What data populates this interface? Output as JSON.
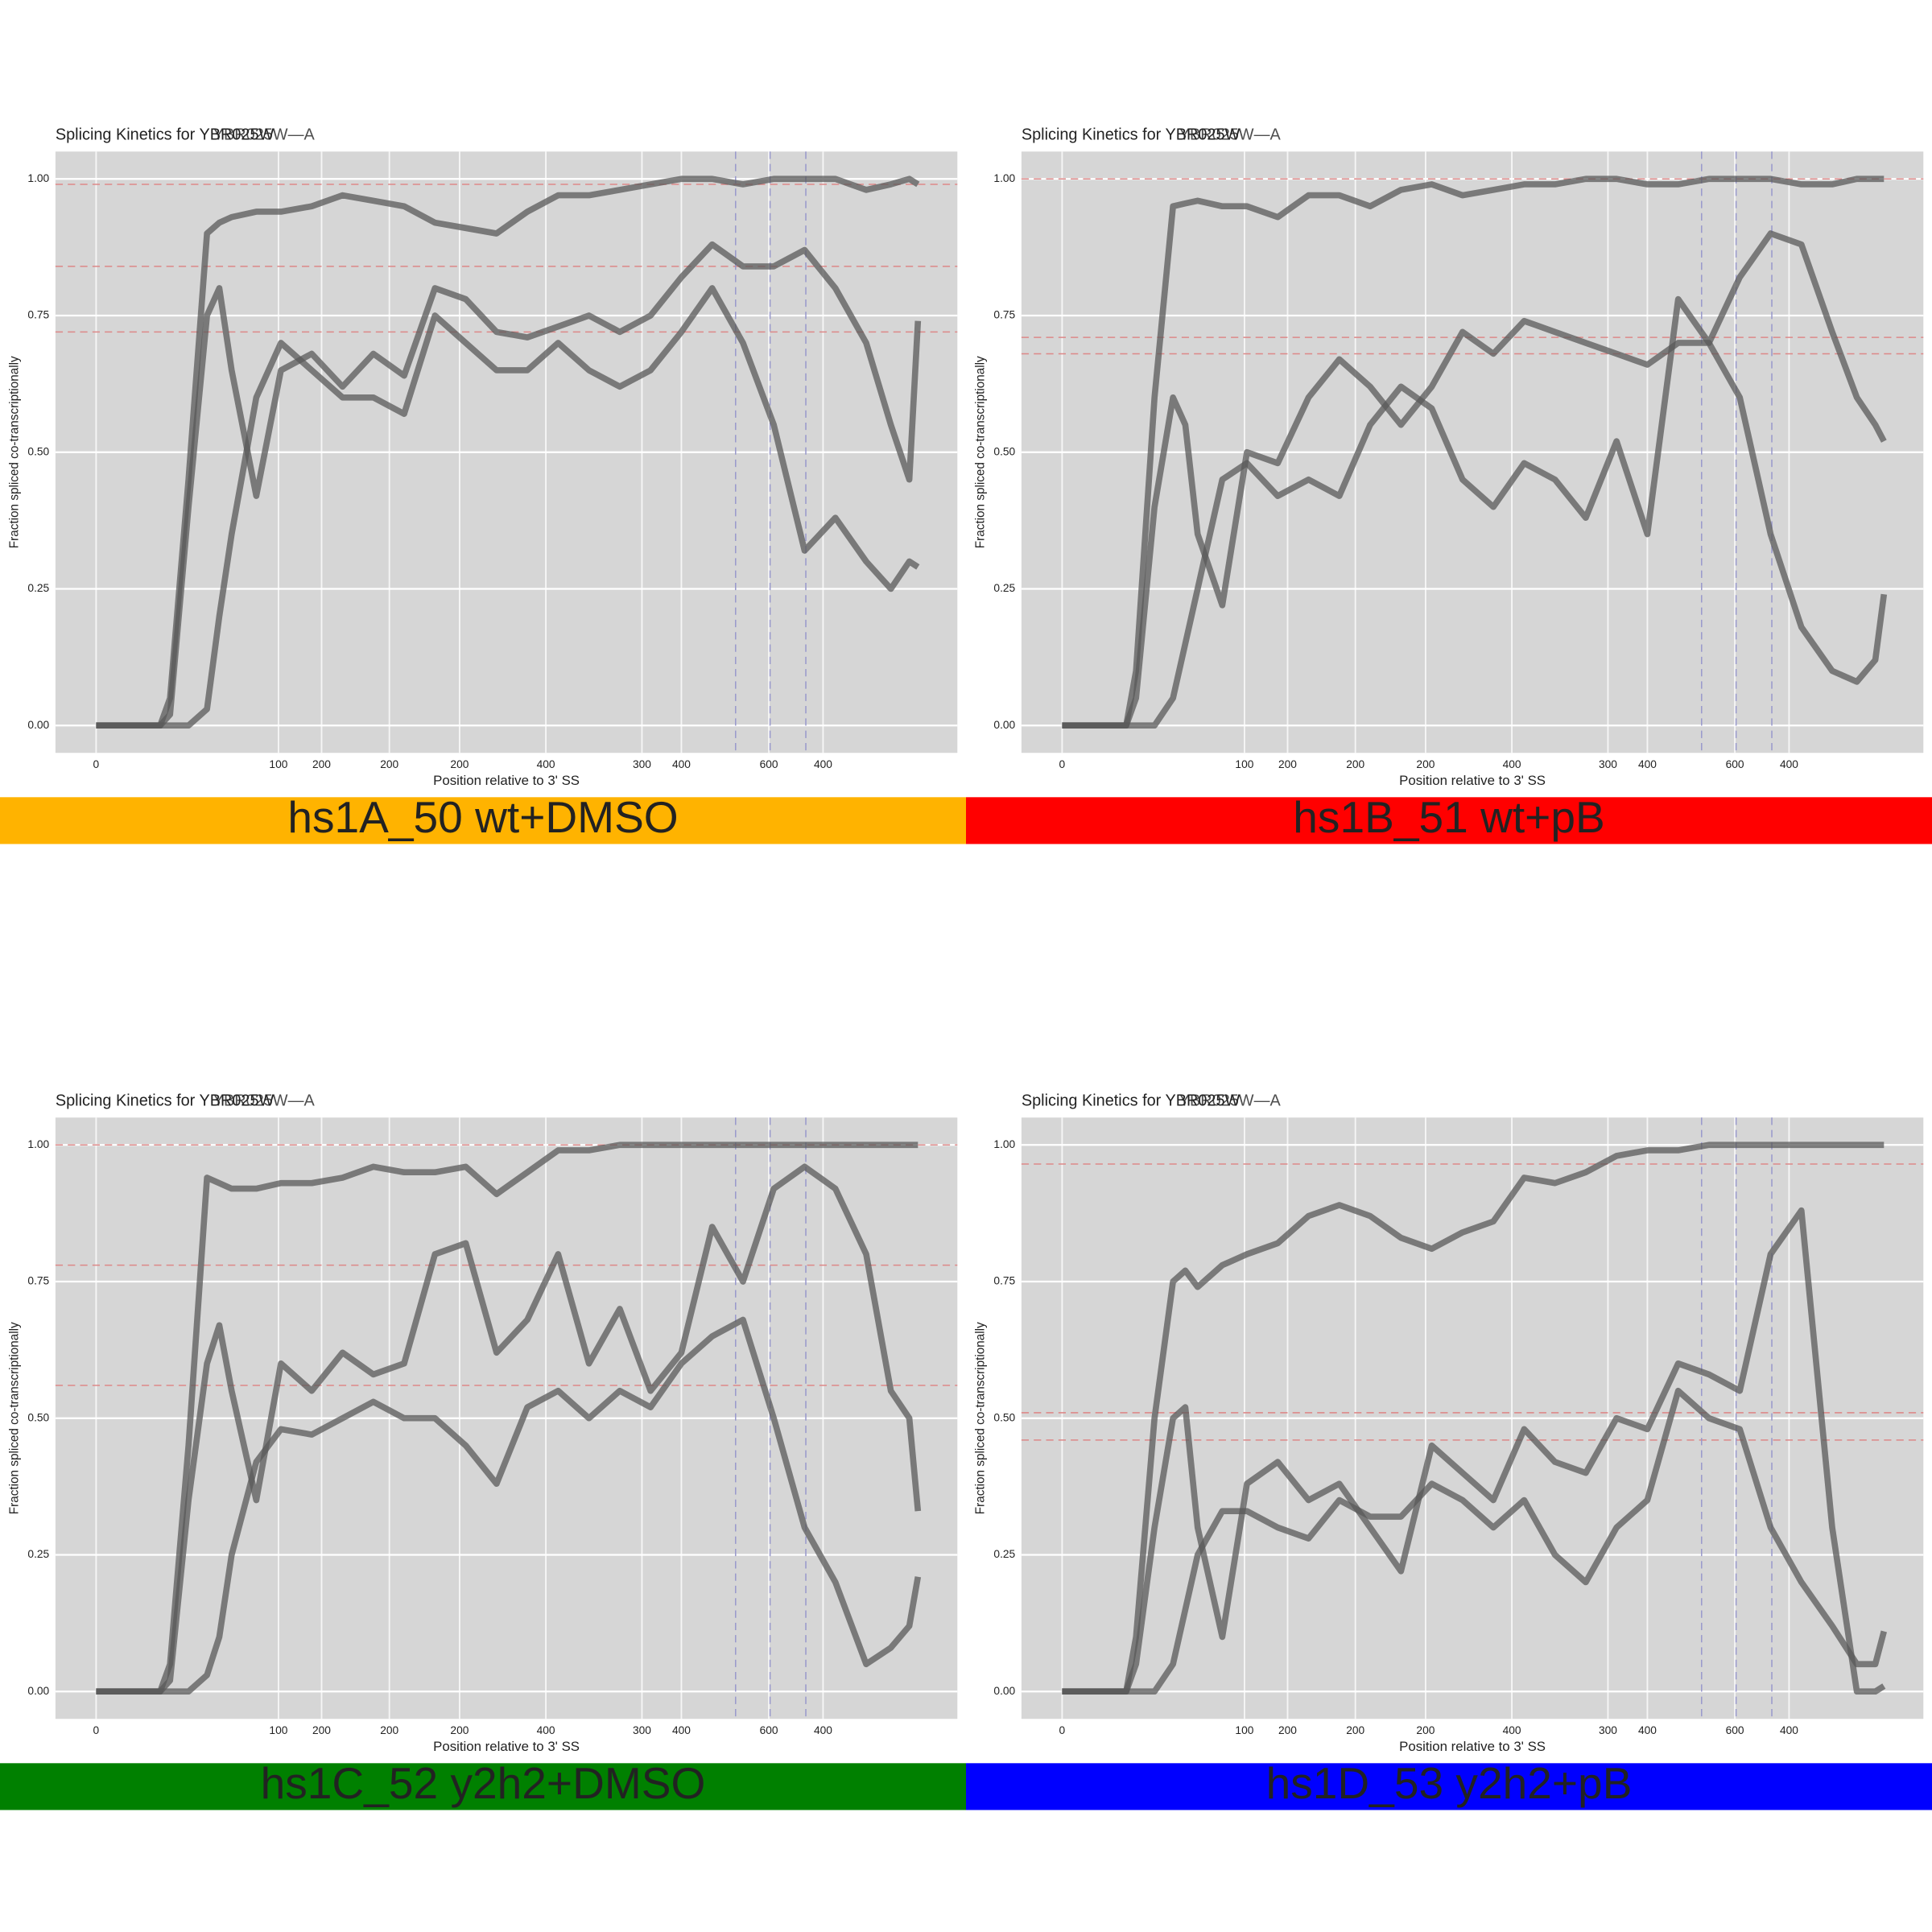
{
  "chart_data": [
    {
      "type": "line",
      "title": "Splicing Kinetics for YBR025W",
      "overlay_label": "YBR025W—A",
      "xlabel": "Position relative to 3' SS",
      "ylabel": "Fraction spliced co-transcriptionally",
      "banner": {
        "text": "hs1A_50 wt+DMSO",
        "color": "#ffb300"
      },
      "xlim": [
        -33,
        699
      ],
      "ylim": [
        -0.05,
        1.05
      ],
      "xticks": [
        0,
        {
          "value": 148,
          "label": "100"
        },
        {
          "value": 183,
          "label": "200"
        },
        {
          "value": 238,
          "label": "200"
        },
        {
          "value": 295,
          "label": "200"
        },
        {
          "value": 365,
          "label": "400"
        },
        {
          "value": 443,
          "label": "300"
        },
        {
          "value": 475,
          "label": "400"
        },
        {
          "value": 546,
          "label": "600"
        },
        {
          "value": 590,
          "label": "400"
        }
      ],
      "yticks": [
        {
          "value": 0,
          "label": "0.00"
        },
        {
          "value": 0.25,
          "label": "0.25"
        },
        {
          "value": 0.5,
          "label": "0.50"
        },
        {
          "value": 0.75,
          "label": "0.75"
        },
        {
          "value": 1,
          "label": "1.00"
        }
      ],
      "hlines": [
        0.99,
        0.84,
        0.72
      ],
      "vlines": [
        519,
        547,
        576
      ],
      "x": [
        0,
        52,
        60,
        75,
        90,
        100,
        110,
        130,
        150,
        175,
        200,
        225,
        250,
        275,
        300,
        325,
        350,
        375,
        400,
        425,
        450,
        475,
        500,
        525,
        550,
        575,
        600,
        625,
        645,
        660,
        667
      ],
      "series": [
        {
          "color": "#5a5a5a",
          "values": [
            0,
            0,
            0.05,
            0.45,
            0.9,
            0.92,
            0.93,
            0.94,
            0.94,
            0.95,
            0.97,
            0.96,
            0.95,
            0.92,
            0.91,
            0.9,
            0.94,
            0.97,
            0.97,
            0.98,
            0.99,
            1.0,
            1.0,
            0.99,
            1.0,
            1.0,
            1.0,
            0.98,
            0.99,
            1.0,
            0.99
          ]
        },
        {
          "color": "#5a5a5a",
          "values": [
            0,
            0,
            0.02,
            0.4,
            0.75,
            0.8,
            0.65,
            0.42,
            0.65,
            0.68,
            0.62,
            0.68,
            0.64,
            0.8,
            0.78,
            0.72,
            0.71,
            0.73,
            0.75,
            0.72,
            0.75,
            0.82,
            0.88,
            0.84,
            0.84,
            0.87,
            0.8,
            0.7,
            0.55,
            0.45,
            0.74
          ]
        },
        {
          "color": "#5a5a5a",
          "values": [
            0,
            0,
            0,
            0,
            0.03,
            0.2,
            0.35,
            0.6,
            0.7,
            0.65,
            0.6,
            0.6,
            0.57,
            0.75,
            0.7,
            0.65,
            0.65,
            0.7,
            0.65,
            0.62,
            0.65,
            0.72,
            0.8,
            0.7,
            0.55,
            0.32,
            0.38,
            0.3,
            0.25,
            0.3,
            0.29
          ]
        }
      ]
    },
    {
      "type": "line",
      "title": "Splicing Kinetics for YBR025W",
      "overlay_label": "YBR025W—A",
      "xlabel": "Position relative to 3' SS",
      "ylabel": "Fraction spliced co-transcriptionally",
      "banner": {
        "text": "hs1B_51 wt+pB",
        "color": "#ff0000"
      },
      "xlim": [
        -33,
        699
      ],
      "ylim": [
        -0.05,
        1.05
      ],
      "xticks": [
        0,
        {
          "value": 148,
          "label": "100"
        },
        {
          "value": 183,
          "label": "200"
        },
        {
          "value": 238,
          "label": "200"
        },
        {
          "value": 295,
          "label": "200"
        },
        {
          "value": 365,
          "label": "400"
        },
        {
          "value": 443,
          "label": "300"
        },
        {
          "value": 475,
          "label": "400"
        },
        {
          "value": 546,
          "label": "600"
        },
        {
          "value": 590,
          "label": "400"
        }
      ],
      "yticks": [
        {
          "value": 0,
          "label": "0.00"
        },
        {
          "value": 0.25,
          "label": "0.25"
        },
        {
          "value": 0.5,
          "label": "0.50"
        },
        {
          "value": 0.75,
          "label": "0.75"
        },
        {
          "value": 1,
          "label": "1.00"
        }
      ],
      "hlines": [
        1.0,
        0.71,
        0.68
      ],
      "vlines": [
        519,
        547,
        576
      ],
      "x": [
        0,
        52,
        60,
        75,
        90,
        100,
        110,
        130,
        150,
        175,
        200,
        225,
        250,
        275,
        300,
        325,
        350,
        375,
        400,
        425,
        450,
        475,
        500,
        525,
        550,
        575,
        600,
        625,
        645,
        660,
        667
      ],
      "series": [
        {
          "color": "#5a5a5a",
          "values": [
            0,
            0,
            0.1,
            0.6,
            0.95,
            0.955,
            0.96,
            0.95,
            0.95,
            0.93,
            0.97,
            0.97,
            0.95,
            0.98,
            0.99,
            0.97,
            0.98,
            0.99,
            0.99,
            1.0,
            1.0,
            0.99,
            0.99,
            1.0,
            1.0,
            1.0,
            0.99,
            0.99,
            1.0,
            1.0,
            1.0
          ]
        },
        {
          "color": "#5a5a5a",
          "values": [
            0,
            0,
            0.05,
            0.4,
            0.6,
            0.55,
            0.35,
            0.22,
            0.5,
            0.48,
            0.6,
            0.67,
            0.62,
            0.55,
            0.62,
            0.72,
            0.68,
            0.74,
            0.72,
            0.7,
            0.68,
            0.66,
            0.7,
            0.7,
            0.6,
            0.35,
            0.18,
            0.1,
            0.08,
            0.12,
            0.24
          ]
        },
        {
          "color": "#5a5a5a",
          "values": [
            0,
            0,
            0,
            0,
            0.05,
            0.15,
            0.25,
            0.45,
            0.48,
            0.42,
            0.45,
            0.42,
            0.55,
            0.62,
            0.58,
            0.45,
            0.4,
            0.48,
            0.45,
            0.38,
            0.52,
            0.35,
            0.78,
            0.7,
            0.82,
            0.9,
            0.88,
            0.72,
            0.6,
            0.55,
            0.52
          ]
        }
      ]
    },
    {
      "type": "line",
      "title": "Splicing Kinetics for YBR025W",
      "overlay_label": "YBR025W—A",
      "xlabel": "Position relative to 3' SS",
      "ylabel": "Fraction spliced co-transcriptionally",
      "banner": {
        "text": "hs1C_52 y2h2+DMSO",
        "color": "#008000"
      },
      "xlim": [
        -33,
        699
      ],
      "ylim": [
        -0.05,
        1.05
      ],
      "xticks": [
        0,
        {
          "value": 148,
          "label": "100"
        },
        {
          "value": 183,
          "label": "200"
        },
        {
          "value": 238,
          "label": "200"
        },
        {
          "value": 295,
          "label": "200"
        },
        {
          "value": 365,
          "label": "400"
        },
        {
          "value": 443,
          "label": "300"
        },
        {
          "value": 475,
          "label": "400"
        },
        {
          "value": 546,
          "label": "600"
        },
        {
          "value": 590,
          "label": "400"
        }
      ],
      "yticks": [
        {
          "value": 0,
          "label": "0.00"
        },
        {
          "value": 0.25,
          "label": "0.25"
        },
        {
          "value": 0.5,
          "label": "0.50"
        },
        {
          "value": 0.75,
          "label": "0.75"
        },
        {
          "value": 1,
          "label": "1.00"
        }
      ],
      "hlines": [
        1.0,
        0.78,
        0.56
      ],
      "vlines": [
        519,
        547,
        576
      ],
      "x": [
        0,
        52,
        60,
        75,
        90,
        100,
        110,
        130,
        150,
        175,
        200,
        225,
        250,
        275,
        300,
        325,
        350,
        375,
        400,
        425,
        450,
        475,
        500,
        525,
        550,
        575,
        600,
        625,
        645,
        660,
        667
      ],
      "series": [
        {
          "color": "#5a5a5a",
          "values": [
            0,
            0,
            0.05,
            0.45,
            0.94,
            0.93,
            0.92,
            0.92,
            0.93,
            0.93,
            0.94,
            0.96,
            0.95,
            0.95,
            0.96,
            0.91,
            0.95,
            0.99,
            0.99,
            1.0,
            1.0,
            1.0,
            1.0,
            1.0,
            1.0,
            1.0,
            1.0,
            1.0,
            1.0,
            1.0,
            1.0
          ]
        },
        {
          "color": "#5a5a5a",
          "values": [
            0,
            0,
            0.02,
            0.35,
            0.6,
            0.67,
            0.55,
            0.35,
            0.6,
            0.55,
            0.62,
            0.58,
            0.6,
            0.8,
            0.82,
            0.62,
            0.68,
            0.8,
            0.6,
            0.7,
            0.55,
            0.62,
            0.85,
            0.75,
            0.92,
            0.96,
            0.92,
            0.8,
            0.55,
            0.5,
            0.33
          ]
        },
        {
          "color": "#5a5a5a",
          "values": [
            0,
            0,
            0,
            0,
            0.03,
            0.1,
            0.25,
            0.42,
            0.48,
            0.47,
            0.5,
            0.53,
            0.5,
            0.5,
            0.45,
            0.38,
            0.52,
            0.55,
            0.5,
            0.55,
            0.52,
            0.6,
            0.65,
            0.68,
            0.5,
            0.3,
            0.2,
            0.05,
            0.08,
            0.12,
            0.21
          ]
        }
      ]
    },
    {
      "type": "line",
      "title": "Splicing Kinetics for YBR025W",
      "overlay_label": "YBR025W—A",
      "xlabel": "Position relative to 3' SS",
      "ylabel": "Fraction spliced co-transcriptionally",
      "banner": {
        "text": "hs1D_53 y2h2+pB",
        "color": "#0000ff"
      },
      "xlim": [
        -33,
        699
      ],
      "ylim": [
        -0.05,
        1.05
      ],
      "xticks": [
        0,
        {
          "value": 148,
          "label": "100"
        },
        {
          "value": 183,
          "label": "200"
        },
        {
          "value": 238,
          "label": "200"
        },
        {
          "value": 295,
          "label": "200"
        },
        {
          "value": 365,
          "label": "400"
        },
        {
          "value": 443,
          "label": "300"
        },
        {
          "value": 475,
          "label": "400"
        },
        {
          "value": 546,
          "label": "600"
        },
        {
          "value": 590,
          "label": "400"
        }
      ],
      "yticks": [
        {
          "value": 0,
          "label": "0.00"
        },
        {
          "value": 0.25,
          "label": "0.25"
        },
        {
          "value": 0.5,
          "label": "0.50"
        },
        {
          "value": 0.75,
          "label": "0.75"
        },
        {
          "value": 1,
          "label": "1.00"
        }
      ],
      "hlines": [
        0.965,
        0.51,
        0.46
      ],
      "vlines": [
        519,
        547,
        576
      ],
      "x": [
        0,
        52,
        60,
        75,
        90,
        100,
        110,
        130,
        150,
        175,
        200,
        225,
        250,
        275,
        300,
        325,
        350,
        375,
        400,
        425,
        450,
        475,
        500,
        525,
        550,
        575,
        600,
        625,
        645,
        660,
        667
      ],
      "series": [
        {
          "color": "#5a5a5a",
          "values": [
            0,
            0,
            0.1,
            0.5,
            0.75,
            0.77,
            0.74,
            0.78,
            0.8,
            0.82,
            0.87,
            0.89,
            0.87,
            0.83,
            0.81,
            0.84,
            0.86,
            0.94,
            0.93,
            0.95,
            0.98,
            0.99,
            0.99,
            1.0,
            1.0,
            1.0,
            1.0,
            1.0,
            1.0,
            1.0,
            1.0
          ]
        },
        {
          "color": "#5a5a5a",
          "values": [
            0,
            0,
            0.05,
            0.3,
            0.5,
            0.52,
            0.3,
            0.1,
            0.38,
            0.42,
            0.35,
            0.38,
            0.3,
            0.22,
            0.45,
            0.4,
            0.35,
            0.48,
            0.42,
            0.4,
            0.5,
            0.48,
            0.6,
            0.58,
            0.55,
            0.8,
            0.88,
            0.3,
            0.0,
            0.0,
            0.01
          ]
        },
        {
          "color": "#5a5a5a",
          "values": [
            0,
            0,
            0,
            0,
            0.05,
            0.15,
            0.25,
            0.33,
            0.33,
            0.3,
            0.28,
            0.35,
            0.32,
            0.32,
            0.38,
            0.35,
            0.3,
            0.35,
            0.25,
            0.2,
            0.3,
            0.35,
            0.55,
            0.5,
            0.48,
            0.3,
            0.2,
            0.12,
            0.05,
            0.05,
            0.11
          ]
        }
      ]
    }
  ]
}
